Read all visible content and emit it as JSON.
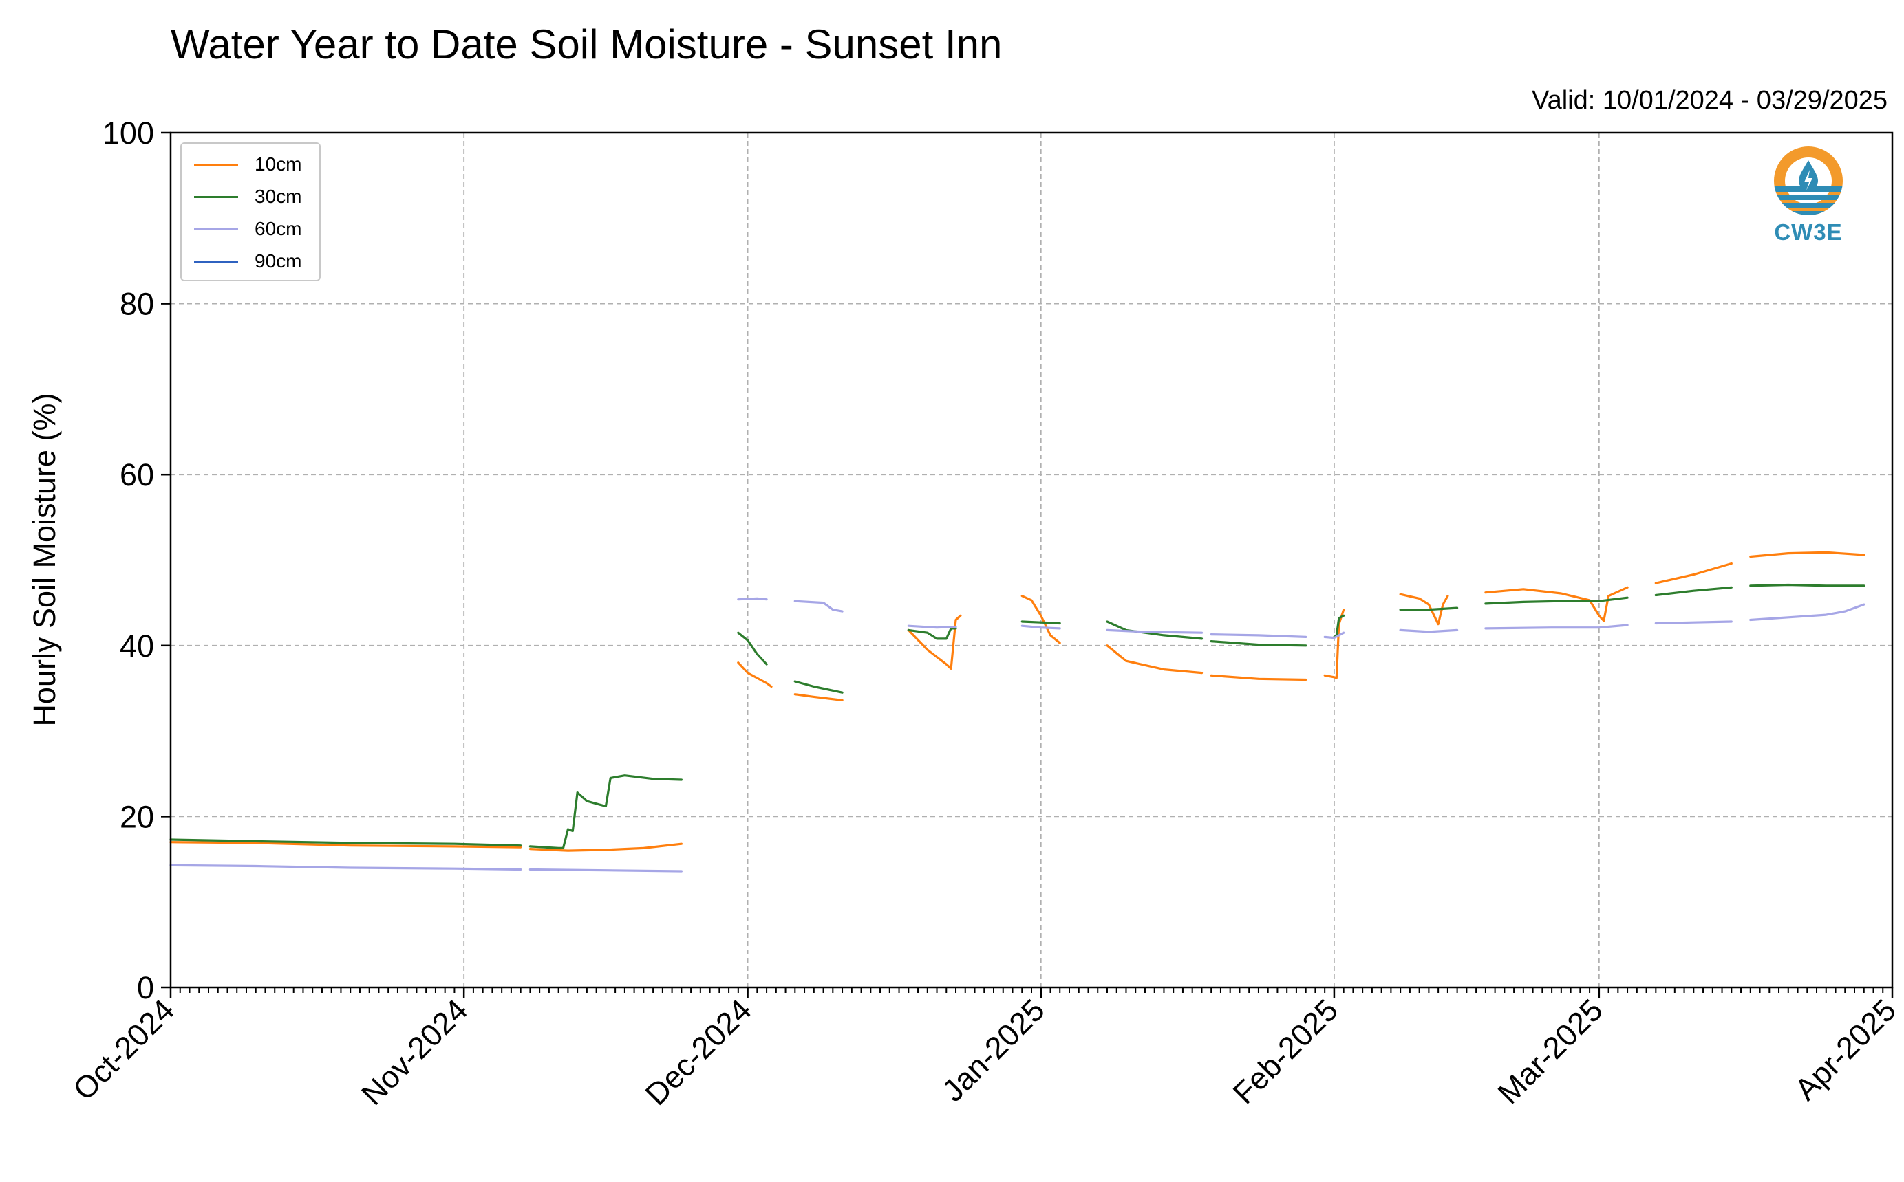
{
  "chart_data": {
    "type": "line",
    "title": "Water Year to Date Soil Moisture - Sunset Inn",
    "subtitle": "Valid: 10/01/2024 - 03/29/2025",
    "xlabel": "",
    "ylabel": "Hourly Soil Moisture (%)",
    "x_start": "2024-10-01",
    "x_end": "2025-04-01",
    "ylim": [
      0,
      100
    ],
    "yticks": [
      0,
      20,
      40,
      60,
      80,
      100
    ],
    "xticks": [
      {
        "date": "2024-10-01",
        "label": "Oct-2024"
      },
      {
        "date": "2024-11-01",
        "label": "Nov-2024"
      },
      {
        "date": "2024-12-01",
        "label": "Dec-2024"
      },
      {
        "date": "2025-01-01",
        "label": "Jan-2025"
      },
      {
        "date": "2025-02-01",
        "label": "Feb-2025"
      },
      {
        "date": "2025-03-01",
        "label": "Mar-2025"
      },
      {
        "date": "2025-04-01",
        "label": "Apr-2025"
      }
    ],
    "grid": true,
    "legend_position": "top-left",
    "series": [
      {
        "name": "10cm",
        "color": "#ff7f0e",
        "segments": [
          [
            [
              "2024-10-01",
              17.0
            ],
            [
              "2024-10-10",
              16.9
            ],
            [
              "2024-10-20",
              16.6
            ],
            [
              "2024-10-31",
              16.5
            ],
            [
              "2024-11-07",
              16.4
            ]
          ],
          [
            [
              "2024-11-08",
              16.2
            ],
            [
              "2024-11-12",
              16.0
            ],
            [
              "2024-11-16",
              16.1
            ],
            [
              "2024-11-20",
              16.3
            ],
            [
              "2024-11-24",
              16.8
            ]
          ],
          [
            [
              "2024-11-30",
              38.0
            ],
            [
              "2024-12-01",
              36.8
            ],
            [
              "2024-12-03",
              35.6
            ],
            [
              "2024-12-03T12:00",
              35.2
            ]
          ],
          [
            [
              "2024-12-06",
              34.3
            ],
            [
              "2024-12-08",
              34.0
            ],
            [
              "2024-12-11",
              33.6
            ]
          ],
          [
            [
              "2024-12-18",
              41.8
            ],
            [
              "2024-12-20",
              39.5
            ],
            [
              "2024-12-22",
              37.8
            ],
            [
              "2024-12-22T12:00",
              37.3
            ],
            [
              "2024-12-23",
              43.0
            ],
            [
              "2024-12-23T12:00",
              43.5
            ]
          ],
          [
            [
              "2024-12-30",
              45.8
            ],
            [
              "2024-12-31",
              45.3
            ],
            [
              "2025-01-01",
              43.5
            ],
            [
              "2025-01-02",
              41.2
            ],
            [
              "2025-01-03",
              40.3
            ]
          ],
          [
            [
              "2025-01-08",
              40.0
            ],
            [
              "2025-01-10",
              38.2
            ],
            [
              "2025-01-14",
              37.2
            ],
            [
              "2025-01-18",
              36.8
            ]
          ],
          [
            [
              "2025-01-19",
              36.5
            ],
            [
              "2025-01-24",
              36.1
            ],
            [
              "2025-01-29",
              36.0
            ]
          ],
          [
            [
              "2025-01-31",
              36.5
            ],
            [
              "2025-02-01",
              36.3
            ],
            [
              "2025-02-01T06:00",
              36.2
            ],
            [
              "2025-02-01T12:00",
              42.5
            ],
            [
              "2025-02-02",
              44.2
            ]
          ],
          [
            [
              "2025-02-08",
              46.0
            ],
            [
              "2025-02-10",
              45.5
            ],
            [
              "2025-02-11",
              44.8
            ],
            [
              "2025-02-12",
              42.5
            ],
            [
              "2025-02-12T12:00",
              44.8
            ],
            [
              "2025-02-13",
              45.8
            ]
          ],
          [
            [
              "2025-02-17",
              46.2
            ],
            [
              "2025-02-21",
              46.6
            ],
            [
              "2025-02-25",
              46.1
            ],
            [
              "2025-02-28",
              45.3
            ],
            [
              "2025-03-01",
              43.5
            ],
            [
              "2025-03-01T12:00",
              42.9
            ],
            [
              "2025-03-02",
              45.8
            ],
            [
              "2025-03-04",
              46.8
            ]
          ],
          [
            [
              "2025-03-07",
              47.3
            ],
            [
              "2025-03-11",
              48.3
            ],
            [
              "2025-03-15",
              49.6
            ]
          ],
          [
            [
              "2025-03-17",
              50.4
            ],
            [
              "2025-03-21",
              50.8
            ],
            [
              "2025-03-25",
              50.9
            ],
            [
              "2025-03-29",
              50.6
            ]
          ]
        ]
      },
      {
        "name": "30cm",
        "color": "#2d7d2d",
        "segments": [
          [
            [
              "2024-10-01",
              17.3
            ],
            [
              "2024-10-10",
              17.1
            ],
            [
              "2024-10-20",
              16.9
            ],
            [
              "2024-10-31",
              16.8
            ],
            [
              "2024-11-07",
              16.6
            ]
          ],
          [
            [
              "2024-11-08",
              16.5
            ],
            [
              "2024-11-11",
              16.3
            ],
            [
              "2024-11-11T12:00",
              16.3
            ],
            [
              "2024-11-12",
              18.5
            ],
            [
              "2024-11-12T12:00",
              18.3
            ],
            [
              "2024-11-13",
              22.8
            ],
            [
              "2024-11-14",
              21.8
            ],
            [
              "2024-11-15",
              21.5
            ],
            [
              "2024-11-16",
              21.2
            ],
            [
              "2024-11-16T12:00",
              24.5
            ],
            [
              "2024-11-18",
              24.8
            ],
            [
              "2024-11-21",
              24.4
            ],
            [
              "2024-11-24",
              24.3
            ]
          ],
          [
            [
              "2024-11-30",
              41.5
            ],
            [
              "2024-12-01",
              40.6
            ],
            [
              "2024-12-02",
              39.0
            ],
            [
              "2024-12-03",
              37.8
            ]
          ],
          [
            [
              "2024-12-06",
              35.8
            ],
            [
              "2024-12-08",
              35.2
            ],
            [
              "2024-12-11",
              34.5
            ]
          ],
          [
            [
              "2024-12-18",
              41.8
            ],
            [
              "2024-12-20",
              41.5
            ],
            [
              "2024-12-21",
              40.8
            ],
            [
              "2024-12-22",
              40.8
            ],
            [
              "2024-12-22T12:00",
              42.0
            ],
            [
              "2024-12-23",
              42.0
            ]
          ],
          [
            [
              "2024-12-30",
              42.8
            ],
            [
              "2025-01-01",
              42.7
            ],
            [
              "2025-01-03",
              42.6
            ]
          ],
          [
            [
              "2025-01-08",
              42.8
            ],
            [
              "2025-01-10",
              41.8
            ],
            [
              "2025-01-14",
              41.2
            ],
            [
              "2025-01-18",
              40.8
            ]
          ],
          [
            [
              "2025-01-19",
              40.5
            ],
            [
              "2025-01-24",
              40.1
            ],
            [
              "2025-01-29",
              40.0
            ]
          ],
          [
            [
              "2025-02-01",
              41.0
            ],
            [
              "2025-02-01T06:00",
              41.2
            ],
            [
              "2025-02-01T12:00",
              43.2
            ],
            [
              "2025-02-02",
              43.5
            ]
          ],
          [
            [
              "2025-02-08",
              44.2
            ],
            [
              "2025-02-11",
              44.2
            ],
            [
              "2025-02-14",
              44.4
            ]
          ],
          [
            [
              "2025-02-17",
              44.9
            ],
            [
              "2025-02-21",
              45.1
            ],
            [
              "2025-02-25",
              45.2
            ],
            [
              "2025-03-01",
              45.2
            ],
            [
              "2025-03-04",
              45.6
            ]
          ],
          [
            [
              "2025-03-07",
              45.9
            ],
            [
              "2025-03-11",
              46.4
            ],
            [
              "2025-03-15",
              46.8
            ]
          ],
          [
            [
              "2025-03-17",
              47.0
            ],
            [
              "2025-03-21",
              47.1
            ],
            [
              "2025-03-25",
              47.0
            ],
            [
              "2025-03-29",
              47.0
            ]
          ]
        ]
      },
      {
        "name": "60cm",
        "color": "#a6a6e6",
        "segments": [
          [
            [
              "2024-10-01",
              14.3
            ],
            [
              "2024-10-10",
              14.2
            ],
            [
              "2024-10-20",
              14.0
            ],
            [
              "2024-10-31",
              13.9
            ],
            [
              "2024-11-07",
              13.8
            ]
          ],
          [
            [
              "2024-11-08",
              13.8
            ],
            [
              "2024-11-16",
              13.7
            ],
            [
              "2024-11-24",
              13.6
            ]
          ],
          [
            [
              "2024-11-30",
              45.4
            ],
            [
              "2024-12-02",
              45.5
            ],
            [
              "2024-12-03",
              45.4
            ]
          ],
          [
            [
              "2024-12-06",
              45.2
            ],
            [
              "2024-12-09",
              45.0
            ],
            [
              "2024-12-10",
              44.2
            ],
            [
              "2024-12-11",
              44.0
            ]
          ],
          [
            [
              "2024-12-18",
              42.3
            ],
            [
              "2024-12-21",
              42.1
            ],
            [
              "2024-12-23",
              42.2
            ]
          ],
          [
            [
              "2024-12-30",
              42.3
            ],
            [
              "2025-01-01",
              42.1
            ],
            [
              "2025-01-03",
              42.0
            ]
          ],
          [
            [
              "2025-01-08",
              41.8
            ],
            [
              "2025-01-12",
              41.6
            ],
            [
              "2025-01-18",
              41.5
            ]
          ],
          [
            [
              "2025-01-19",
              41.3
            ],
            [
              "2025-01-24",
              41.2
            ],
            [
              "2025-01-29",
              41.0
            ]
          ],
          [
            [
              "2025-01-31",
              41.0
            ],
            [
              "2025-02-01",
              40.9
            ],
            [
              "2025-02-02",
              41.5
            ]
          ],
          [
            [
              "2025-02-08",
              41.8
            ],
            [
              "2025-02-11",
              41.6
            ],
            [
              "2025-02-14",
              41.8
            ]
          ],
          [
            [
              "2025-02-17",
              42.0
            ],
            [
              "2025-02-24",
              42.1
            ],
            [
              "2025-03-01",
              42.1
            ],
            [
              "2025-03-04",
              42.4
            ]
          ],
          [
            [
              "2025-03-07",
              42.6
            ],
            [
              "2025-03-11",
              42.7
            ],
            [
              "2025-03-15",
              42.8
            ]
          ],
          [
            [
              "2025-03-17",
              43.0
            ],
            [
              "2025-03-21",
              43.3
            ],
            [
              "2025-03-25",
              43.6
            ],
            [
              "2025-03-27",
              44.0
            ],
            [
              "2025-03-29",
              44.8
            ]
          ]
        ]
      },
      {
        "name": "90cm",
        "color": "#2f62c0",
        "segments": []
      }
    ]
  },
  "logo": {
    "text": "CW3E",
    "colors": {
      "ring": "#f39a2b",
      "water": "#2e8cb5",
      "text": "#2e8cb5"
    }
  }
}
